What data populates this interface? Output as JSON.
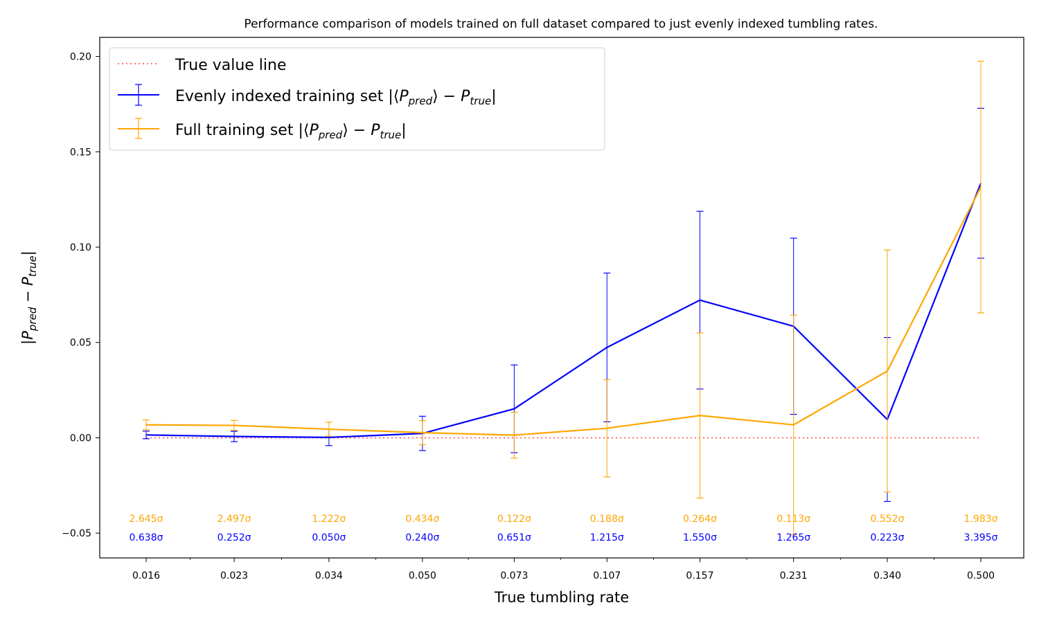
{
  "chart_data": {
    "type": "line",
    "title": "Performance comparison of models trained on full dataset compared to just evenly indexed tumbling rates.",
    "xlabel": "True tumbling rate",
    "ylabel": "|P_pred − P_true|",
    "x_scale": "log",
    "x_ticks": [
      "0.016",
      "0.023",
      "0.034",
      "0.050",
      "0.073",
      "0.107",
      "0.157",
      "0.231",
      "0.340",
      "0.500"
    ],
    "x": [
      0.016,
      0.023,
      0.034,
      0.05,
      0.073,
      0.107,
      0.157,
      0.231,
      0.34,
      0.5
    ],
    "ylim": [
      -0.063,
      0.21
    ],
    "y_ticks": [
      "−0.05",
      "0.00",
      "0.05",
      "0.10",
      "0.15",
      "0.20"
    ],
    "grid": false,
    "legend_position": "top-left",
    "legend": [
      "True value line",
      "Evenly indexed training set |⟨P_pred⟩ − P_true|",
      "Full training set |⟨P_pred⟩ − P_true|"
    ],
    "series": [
      {
        "name": "True value line",
        "color": "#ff7070",
        "style": "dotted",
        "values": [
          0,
          0,
          0,
          0,
          0,
          0,
          0,
          0,
          0,
          0
        ]
      },
      {
        "name": "Evenly indexed training set",
        "color": "#0000ff",
        "values": [
          0.0015,
          0.0007,
          0.0002,
          0.0023,
          0.0152,
          0.0474,
          0.0722,
          0.0585,
          0.0096,
          0.1335
        ],
        "errors": [
          0.002,
          0.0027,
          0.0043,
          0.009,
          0.023,
          0.039,
          0.0466,
          0.0462,
          0.043,
          0.0393
        ],
        "sigma_labels": [
          "0.638σ",
          "0.252σ",
          "0.050σ",
          "0.240σ",
          "0.651σ",
          "1.215σ",
          "1.550σ",
          "1.265σ",
          "0.223σ",
          "3.395σ"
        ]
      },
      {
        "name": "Full training set",
        "color": "#ffa500",
        "values": [
          0.0068,
          0.0065,
          0.0045,
          0.0027,
          0.0014,
          0.005,
          0.0117,
          0.0068,
          0.035,
          0.1315
        ],
        "errors": [
          0.0026,
          0.0026,
          0.0037,
          0.0063,
          0.012,
          0.0255,
          0.0433,
          0.0575,
          0.0635,
          0.066
        ],
        "sigma_labels": [
          "2.645σ",
          "2.497σ",
          "1.222σ",
          "0.434σ",
          "0.122σ",
          "0.188σ",
          "0.264σ",
          "0.113σ",
          "0.552σ",
          "1.983σ"
        ]
      }
    ]
  }
}
